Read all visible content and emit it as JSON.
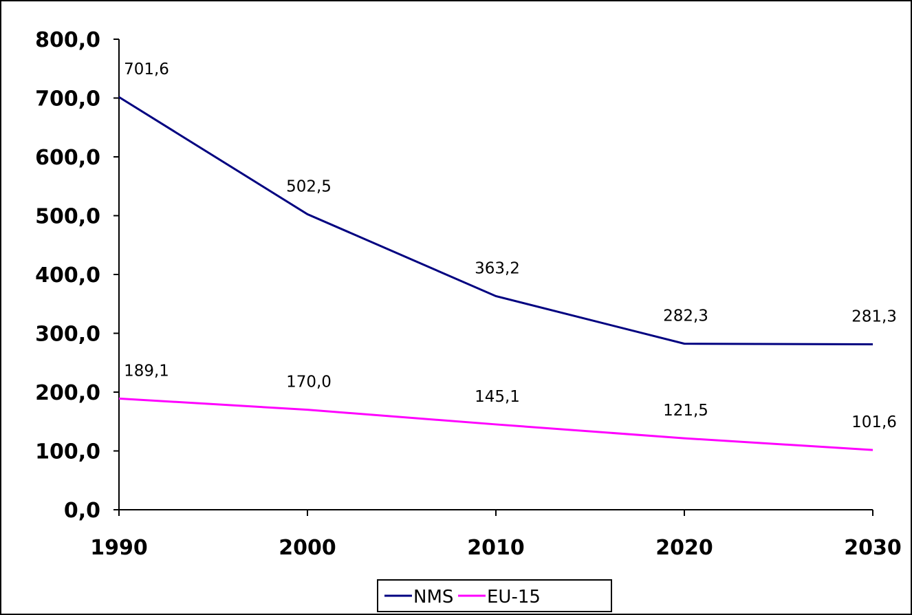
{
  "chart_data": {
    "type": "line",
    "x": [
      1990,
      2000,
      2010,
      2020,
      2030
    ],
    "x_tick_labels": [
      "1990",
      "2000",
      "2010",
      "2020",
      "2030"
    ],
    "ylim": [
      0,
      800
    ],
    "y_ticks": [
      0,
      100,
      200,
      300,
      400,
      500,
      600,
      700,
      800
    ],
    "y_tick_labels": [
      "0,0",
      "100,0",
      "200,0",
      "300,0",
      "400,0",
      "500,0",
      "600,0",
      "700,0",
      "800,0"
    ],
    "grid": false,
    "legend_position": "bottom-center",
    "series": [
      {
        "name": "NMS",
        "color": "#000080",
        "values": [
          701.6,
          502.5,
          363.2,
          282.3,
          281.3
        ],
        "labels": [
          "701,6",
          "502,5",
          "363,2",
          "282,3",
          "281,3"
        ]
      },
      {
        "name": "EU-15",
        "color": "#FF00FF",
        "values": [
          189.1,
          170.0,
          145.1,
          121.5,
          101.6
        ],
        "labels": [
          "189,1",
          "170,0",
          "145,1",
          "121,5",
          "101,6"
        ]
      }
    ]
  }
}
